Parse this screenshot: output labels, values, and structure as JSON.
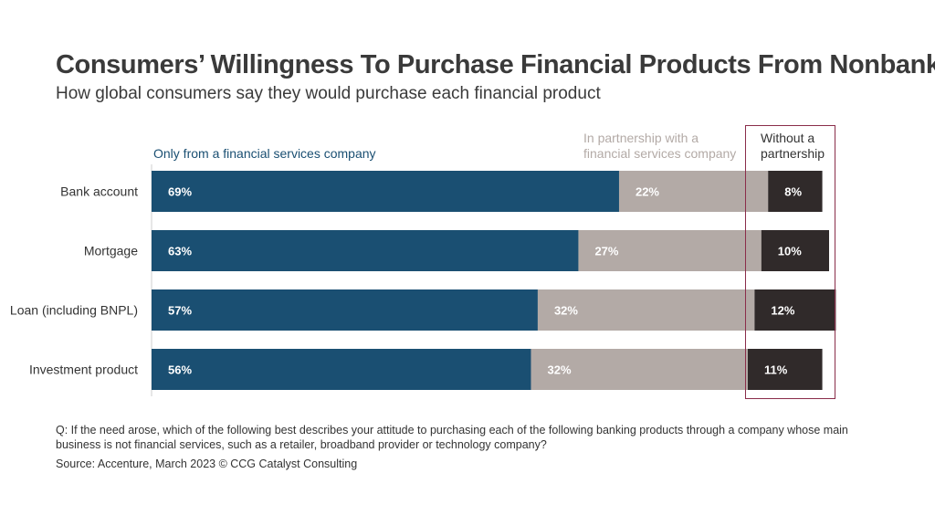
{
  "title": "Consumers’ Willingness To Purchase Financial Products From Nonbanks",
  "subtitle": "How global consumers say they would purchase each financial product",
  "chart_data": {
    "type": "bar",
    "orientation": "horizontal",
    "stacked": true,
    "categories": [
      "Bank account",
      "Mortgage",
      "Loan (including BNPL)",
      "Investment product"
    ],
    "series": [
      {
        "name": "Only from a financial services company",
        "values": [
          69,
          63,
          57,
          56
        ],
        "color": "#1a4f72",
        "label_color": "#ffffff"
      },
      {
        "name": "In partnership with a financial services company",
        "values": [
          22,
          27,
          32,
          32
        ],
        "color": "#b3aaa6",
        "label_color": "#ffffff"
      },
      {
        "name": "Without a partnership",
        "values": [
          8,
          10,
          12,
          11
        ],
        "color": "#302a2a",
        "label_color": "#ffffff"
      }
    ],
    "value_suffix": "%",
    "xlim": [
      0,
      100
    ],
    "highlighted_series": "Without a partnership",
    "highlight_color": "#8a2d4a"
  },
  "legend": {
    "only": "Only from a financial services company",
    "partner": "In partnership with a financial services company",
    "without": "Without a partnership"
  },
  "footnote": "Q: If the need arose, which of the following best describes your attitude to purchasing each of the following banking products through a company whose main business is not financial services, such as a retailer, broadband provider or technology company?",
  "source": "Source: Accenture, March 2023 © CCG Catalyst Consulting"
}
